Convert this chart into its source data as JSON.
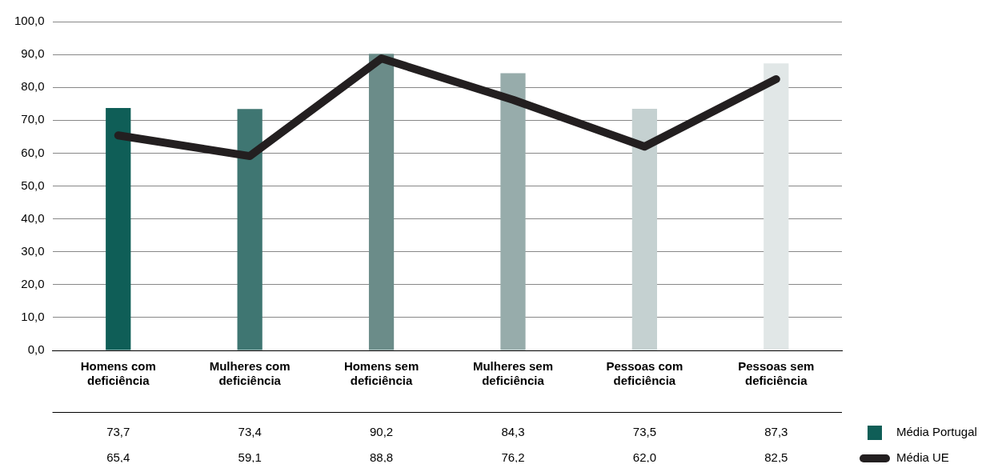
{
  "chart_data": {
    "type": "bar",
    "categories": [
      "Homens com deficiência",
      "Mulheres com deficiência",
      "Homens sem deficiência",
      "Mulheres sem deficiência",
      "Pessoas com deficiência",
      "Pessoas sem deficiência"
    ],
    "series": [
      {
        "name": "Média Portugal",
        "color": "#0f5e57",
        "colors": [
          "#0f5e57",
          "#3f7672",
          "#6b8c89",
          "#97acab",
          "#c5d1d1",
          "#e1e7e7"
        ],
        "values": [
          73.7,
          73.4,
          90.2,
          84.3,
          73.5,
          87.3
        ],
        "value_labels": [
          "73,7",
          "73,4",
          "90,2",
          "84,3",
          "73,5",
          "87,3"
        ]
      },
      {
        "name": "Média UE",
        "type": "line",
        "color": "#231f20",
        "values": [
          65.4,
          59.1,
          88.8,
          76.2,
          62.0,
          82.5
        ],
        "value_labels": [
          "65,4",
          "59,1",
          "88,8",
          "76,2",
          "62,0",
          "82,5"
        ]
      }
    ],
    "ylim": [
      0,
      100
    ],
    "yticks": [
      {
        "value": 0,
        "label": "0,0"
      },
      {
        "value": 10,
        "label": "10,0"
      },
      {
        "value": 20,
        "label": "20,0"
      },
      {
        "value": 30,
        "label": "30,0"
      },
      {
        "value": 40,
        "label": "40,0"
      },
      {
        "value": 50,
        "label": "50,0"
      },
      {
        "value": 60,
        "label": "60,0"
      },
      {
        "value": 70,
        "label": "70,0"
      },
      {
        "value": 80,
        "label": "80,0"
      },
      {
        "value": 90,
        "label": "90,0"
      },
      {
        "value": 100,
        "label": "100,0"
      }
    ],
    "grid": "y",
    "legend": "bottom right",
    "marker": "none",
    "line_style": "solid"
  }
}
